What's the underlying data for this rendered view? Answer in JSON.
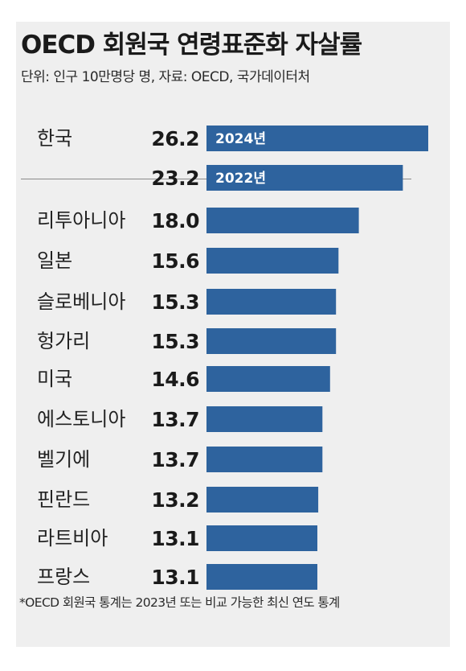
{
  "title": "OECD 회원국 연령표준화 자살률",
  "source": "단위: 인구 10만명당 명, 자료: OECD, 국가데이터처",
  "footnote": "*OECD 회원국 통계는 2023년 또는 비교 가능한 최신 연도 통계",
  "colors": {
    "bar": "#2e639e",
    "year_label_bg": "#2e639e",
    "panel": "#efefef"
  },
  "chart_data": {
    "type": "bar",
    "orientation": "horizontal",
    "title": "OECD 회원국 연령표준화 자살률",
    "subtitle": "단위: 인구 10만명당 명, 자료: OECD, 국가데이터처",
    "rows": [
      {
        "country": "한국",
        "year_label": "2024년",
        "value": 26.2,
        "value_label": "26.2"
      },
      {
        "country": "",
        "year_label": "2022년",
        "value": 23.2,
        "value_label": "23.2"
      },
      {
        "country": "리투아니아",
        "value": 18.0,
        "value_label": "18.0"
      },
      {
        "country": "일본",
        "value": 15.6,
        "value_label": "15.6"
      },
      {
        "country": "슬로베니아",
        "value": 15.3,
        "value_label": "15.3"
      },
      {
        "country": "헝가리",
        "value": 15.3,
        "value_label": "15.3"
      },
      {
        "country": "미국",
        "value": 14.6,
        "value_label": "14.6"
      },
      {
        "country": "에스토니아",
        "value": 13.7,
        "value_label": "13.7"
      },
      {
        "country": "벨기에",
        "value": 13.7,
        "value_label": "13.7"
      },
      {
        "country": "핀란드",
        "value": 13.2,
        "value_label": "13.2"
      },
      {
        "country": "라트비아",
        "value": 13.1,
        "value_label": "13.1"
      },
      {
        "country": "프랑스",
        "value": 13.1,
        "value_label": "13.1"
      }
    ],
    "xlim": [
      0,
      26.2
    ],
    "grid": false,
    "legend": "none"
  }
}
